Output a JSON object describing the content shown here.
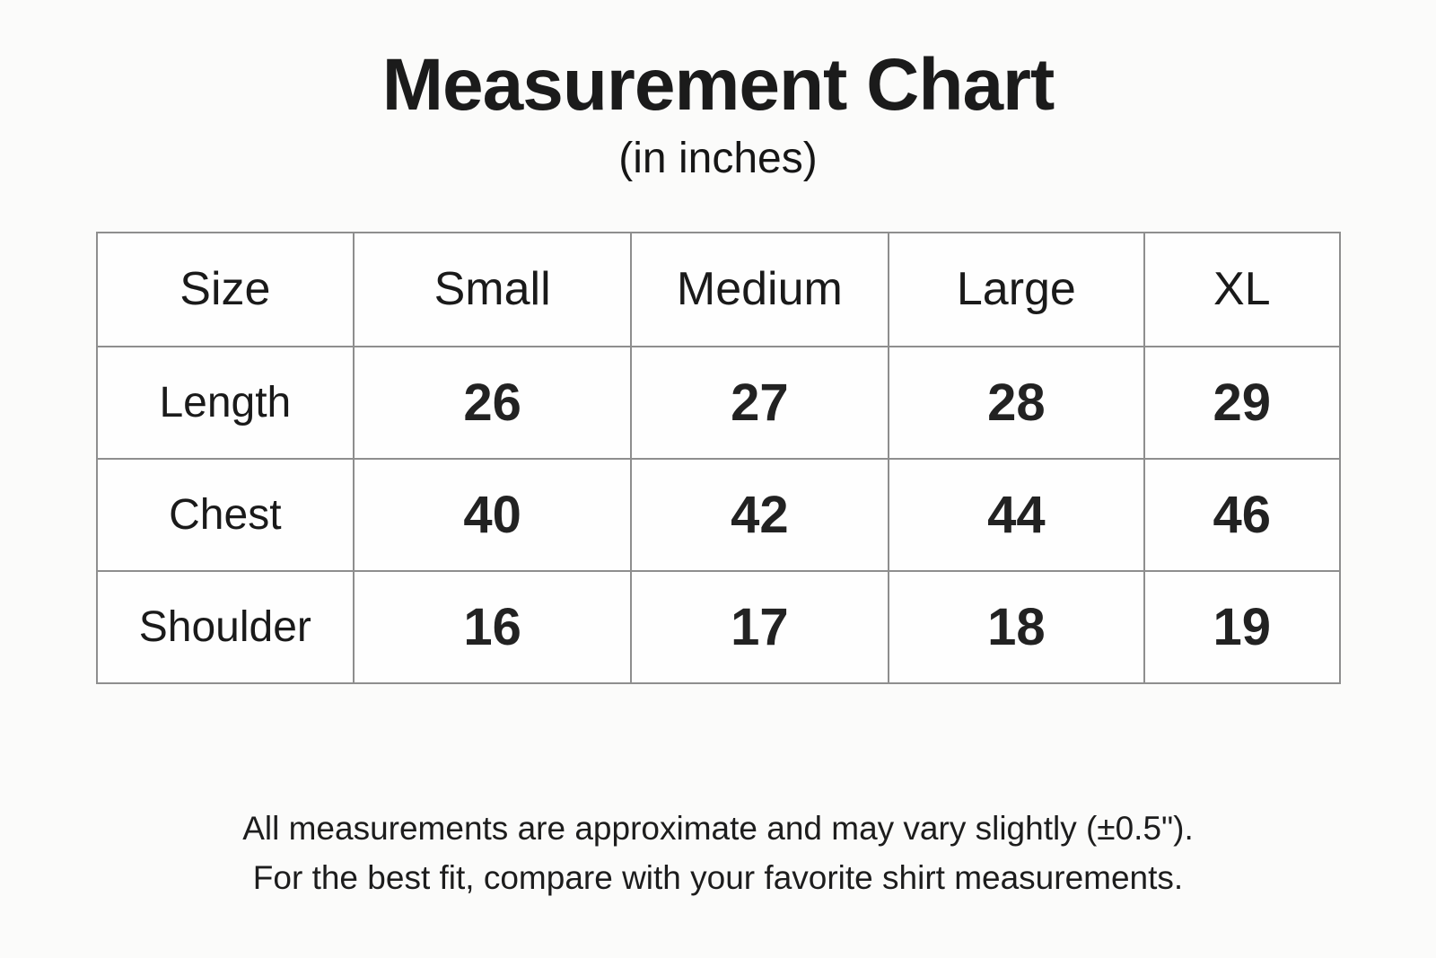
{
  "header": {
    "title": "Measurement Chart",
    "subtitle": "(in inches)"
  },
  "chart_data": {
    "type": "table",
    "title": "Measurement Chart",
    "unit": "inches",
    "columns": [
      "Size",
      "Small",
      "Medium",
      "Large",
      "XL"
    ],
    "rows": [
      {
        "label": "Length",
        "values": [
          "26",
          "27",
          "28",
          "29"
        ]
      },
      {
        "label": "Chest",
        "values": [
          "40",
          "42",
          "44",
          "46"
        ]
      },
      {
        "label": "Shoulder",
        "values": [
          "16",
          "17",
          "18",
          "19"
        ]
      }
    ]
  },
  "footer": {
    "line1": "All measurements are approximate and may vary slightly (±0.5\").",
    "line2": "For the best fit, compare with your favorite shirt measurements."
  },
  "colors": {
    "background": "#fbfbfa",
    "cell_background": "#fefefe",
    "border": "#8e8e8e",
    "text": "#1c1c1c"
  }
}
